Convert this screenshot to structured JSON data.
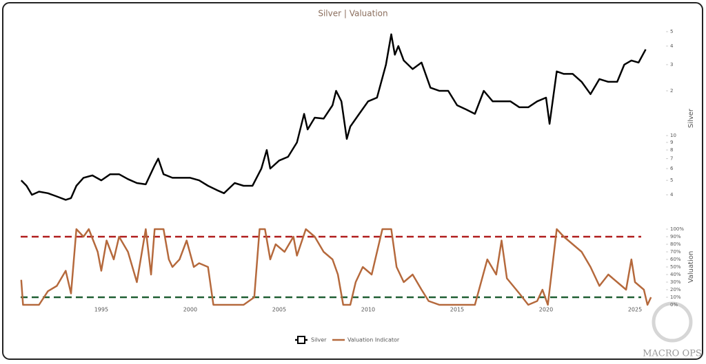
{
  "chart_data": [
    {
      "type": "line",
      "title": "Silver | Valuation",
      "y_label": "Silver",
      "log_scale": true,
      "xlim": [
        1990.47,
        2025.93
      ],
      "ylim": [
        3.34,
        53.3
      ],
      "yticks": [
        4,
        5,
        6,
        7,
        8,
        9,
        10,
        {
          "value": 20,
          "label": "2"
        },
        {
          "value": 30,
          "label": "3"
        },
        {
          "value": 40,
          "label": "4"
        },
        {
          "value": 50,
          "label": "5"
        }
      ],
      "x": [
        1990.5,
        1990.8,
        1991.1,
        1991.5,
        1992.0,
        1992.5,
        1993.0,
        1993.3,
        1993.6,
        1994.0,
        1994.5,
        1995.0,
        1995.5,
        1996.0,
        1996.5,
        1997.0,
        1997.5,
        1998.0,
        1998.2,
        1998.5,
        1999.0,
        1999.5,
        2000.0,
        2000.5,
        2001.0,
        2001.5,
        2001.9,
        2002.5,
        2003.0,
        2003.5,
        2004.0,
        2004.3,
        2004.5,
        2005.0,
        2005.5,
        2006.0,
        2006.4,
        2006.6,
        2007.0,
        2007.5,
        2008.0,
        2008.2,
        2008.5,
        2008.8,
        2009.0,
        2009.5,
        2010.0,
        2010.5,
        2011.0,
        2011.3,
        2011.5,
        2011.7,
        2012.0,
        2012.5,
        2013.0,
        2013.5,
        2014.0,
        2014.5,
        2015.0,
        2015.5,
        2016.0,
        2016.5,
        2017.0,
        2017.5,
        2018.0,
        2018.5,
        2019.0,
        2019.5,
        2020.0,
        2020.2,
        2020.6,
        2021.0,
        2021.5,
        2022.0,
        2022.5,
        2023.0,
        2023.5,
        2024.0,
        2024.4,
        2024.8,
        2025.2,
        2025.6
      ],
      "series": [
        {
          "name": "Silver",
          "color": "#000000",
          "values": [
            5.0,
            4.6,
            4.0,
            4.2,
            4.1,
            3.9,
            3.7,
            3.8,
            4.6,
            5.2,
            5.4,
            5.0,
            5.5,
            5.5,
            5.1,
            4.8,
            4.7,
            6.3,
            7.0,
            5.5,
            5.2,
            5.2,
            5.2,
            5.0,
            4.6,
            4.3,
            4.1,
            4.8,
            4.6,
            4.6,
            6.0,
            8.0,
            6.0,
            6.8,
            7.2,
            9.0,
            14,
            11,
            13.2,
            13,
            16,
            20,
            17,
            9.5,
            11.5,
            14,
            17,
            18,
            30,
            48,
            35,
            40,
            32,
            28,
            31,
            21,
            20,
            20,
            16,
            15,
            14,
            20,
            17,
            17,
            17,
            15.5,
            15.5,
            17,
            18,
            12,
            27,
            26,
            26,
            23,
            19,
            24,
            23,
            23,
            30,
            32,
            31,
            38
          ]
        }
      ]
    },
    {
      "type": "line",
      "y_label": "Valuation",
      "xlim": [
        1990.47,
        2025.93
      ],
      "xticks": [
        1995,
        2000,
        2005,
        2010,
        2015,
        2020,
        2025
      ],
      "ylim": [
        0,
        100
      ],
      "yticks": [
        {
          "value": 0,
          "label": "0%"
        },
        {
          "value": 10,
          "label": "10%"
        },
        {
          "value": 20,
          "label": "20%"
        },
        {
          "value": 30,
          "label": "30%"
        },
        {
          "value": 40,
          "label": "40%"
        },
        {
          "value": 50,
          "label": "50%"
        },
        {
          "value": 60,
          "label": "60%"
        },
        {
          "value": 70,
          "label": "70%"
        },
        {
          "value": 80,
          "label": "80%"
        },
        {
          "value": 90,
          "label": "90%"
        },
        {
          "value": 100,
          "label": "100%"
        }
      ],
      "reference_lines": [
        {
          "value": 90,
          "color": "#b01c1c"
        },
        {
          "value": 10,
          "color": "#1e5e32"
        }
      ],
      "x": [
        1990.5,
        1990.6,
        1991.5,
        1992.0,
        1992.5,
        1993.0,
        1993.3,
        1993.6,
        1994.0,
        1994.3,
        1994.8,
        1995.0,
        1995.3,
        1995.7,
        1996.0,
        1996.5,
        1997.0,
        1997.5,
        1997.8,
        1998.0,
        1998.5,
        1998.8,
        1999.0,
        1999.4,
        1999.8,
        2000.2,
        2000.5,
        2001.0,
        2001.3,
        2002.0,
        2003.0,
        2003.6,
        2003.9,
        2004.2,
        2004.5,
        2004.8,
        2005.3,
        2005.8,
        2006.0,
        2006.5,
        2007.0,
        2007.5,
        2008.0,
        2008.3,
        2008.6,
        2009.0,
        2009.3,
        2009.7,
        2010.2,
        2010.8,
        2011.3,
        2011.6,
        2012.0,
        2012.5,
        2013.0,
        2013.4,
        2014.0,
        2015.0,
        2016.0,
        2016.7,
        2017.2,
        2017.5,
        2017.8,
        2018.5,
        2019.0,
        2019.5,
        2019.8,
        2020.1,
        2020.6,
        2021.0,
        2021.5,
        2022.0,
        2022.5,
        2023.0,
        2023.5,
        2024.0,
        2024.5,
        2024.8,
        2025.0,
        2025.5,
        2025.7,
        2025.9
      ],
      "series": [
        {
          "name": "Valuation Indicator",
          "color": "#b5693c",
          "values": [
            33,
            0,
            0,
            18,
            25,
            45,
            15,
            100,
            90,
            100,
            70,
            45,
            85,
            60,
            90,
            70,
            30,
            100,
            40,
            100,
            100,
            60,
            50,
            60,
            85,
            50,
            55,
            50,
            0,
            0,
            0,
            10,
            100,
            100,
            60,
            80,
            70,
            90,
            65,
            100,
            90,
            70,
            60,
            40,
            0,
            0,
            30,
            50,
            40,
            100,
            100,
            50,
            30,
            40,
            20,
            5,
            0,
            0,
            0,
            60,
            40,
            85,
            35,
            15,
            0,
            5,
            20,
            0,
            100,
            90,
            80,
            70,
            50,
            25,
            40,
            30,
            20,
            60,
            30,
            20,
            0,
            10
          ]
        }
      ]
    }
  ],
  "watermark": "MACRO OPS"
}
